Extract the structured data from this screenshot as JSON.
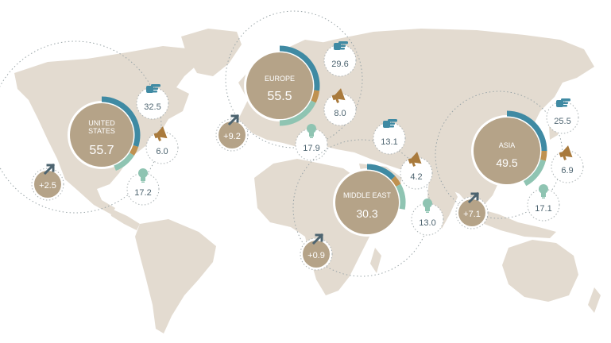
{
  "regions": [
    {
      "key": "us",
      "name": "UNITED STATES",
      "name_lines": [
        "UNITED",
        "STATES"
      ],
      "value": "55.7",
      "segments": {
        "blue": 0.3,
        "orange": 0.04,
        "green": 0.1
      },
      "metrics": [
        {
          "icon": "hand-point-icon",
          "value": "32.5"
        },
        {
          "icon": "megaphone-icon",
          "value": "6.0"
        },
        {
          "icon": "lightbulb-icon",
          "value": "17.2"
        }
      ],
      "growth": "+2.5"
    },
    {
      "key": "eu",
      "name": "EUROPE",
      "name_lines": [
        "EUROPE"
      ],
      "value": "55.5",
      "segments": {
        "blue": 0.27,
        "orange": 0.05,
        "green": 0.18
      },
      "metrics": [
        {
          "icon": "hand-point-icon",
          "value": "29.6"
        },
        {
          "icon": "megaphone-icon",
          "value": "8.0"
        },
        {
          "icon": "lightbulb-icon",
          "value": "17.9"
        }
      ],
      "growth": "+9.2"
    },
    {
      "key": "me",
      "name": "MIDDLE EAST",
      "name_lines": [
        "MIDDLE EAST"
      ],
      "value": "30.3",
      "segments": {
        "blue": 0.13,
        "orange": 0.04,
        "green": 0.11
      },
      "metrics": [
        {
          "icon": "hand-point-icon",
          "value": "13.1"
        },
        {
          "icon": "megaphone-icon",
          "value": "4.2"
        },
        {
          "icon": "lightbulb-icon",
          "value": "13.0"
        }
      ],
      "growth": "+0.9"
    },
    {
      "key": "as",
      "name": "ASIA",
      "name_lines": [
        "ASIA"
      ],
      "value": "49.5",
      "segments": {
        "blue": 0.25,
        "orange": 0.04,
        "green": 0.13
      },
      "metrics": [
        {
          "icon": "hand-point-icon",
          "value": "25.5"
        },
        {
          "icon": "megaphone-icon",
          "value": "6.9"
        },
        {
          "icon": "lightbulb-icon",
          "value": "17.1"
        }
      ],
      "growth": "+7.1"
    }
  ],
  "colors": {
    "land": "#e3dbd0",
    "bubble": "#b5a388",
    "blue": "#3f8aa3",
    "orange": "#bf9150",
    "green": "#8fc4b2",
    "growth_bubble": "#b5a388",
    "text_dark": "#4d6470",
    "icon_blue": "#3f8aa3",
    "icon_orange": "#a97a3c",
    "icon_green": "#8fc4b2"
  }
}
